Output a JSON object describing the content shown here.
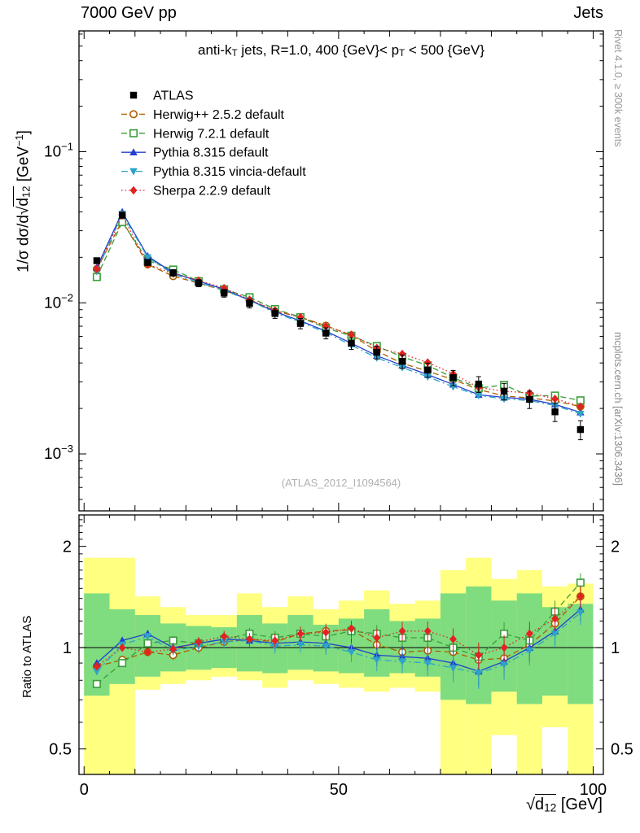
{
  "header": {
    "left": "7000 GeV pp",
    "right": "Jets"
  },
  "side_notes": {
    "right_top": "Rivet 4.1.0, ≥ 300k events",
    "right_bottom": "mcplots.cern.ch [arXiv:1306.3436]"
  },
  "watermark": "(ATLAS_2012_I1094564)",
  "titles": {
    "main": {
      "p1": "anti-k",
      "sub1": "T",
      "p2": " jets, R=1.0, 400 {GeV}< p",
      "sub2": "T",
      "p3": " < 500 {GeV}"
    },
    "ylabel": {
      "p1": "1/σ dσ/d",
      "rad": "√",
      "base": "d",
      "sub": "12",
      "p2": " [GeV",
      "sup": "−1",
      "p3": "]"
    },
    "xlabel": {
      "rad": "√",
      "base": "d",
      "sub": "12",
      "p2": " [GeV]"
    },
    "ratio_ylabel": "Ratio to ATLAS"
  },
  "chart_data": {
    "type": "line",
    "title": "anti-kT jets, R=1.0, 400 GeV < pT < 500 GeV",
    "xlabel": "sqrt(d12) [GeV]",
    "ylabel_main": "1/σ dσ/d sqrt(d12) [GeV^-1]",
    "ylabel_ratio": "Ratio to ATLAS",
    "x_range": [
      -1,
      102
    ],
    "x_ticks_major": [
      0,
      50,
      100
    ],
    "main_y_scale": "log",
    "main_y_range": [
      0.00042,
      0.63
    ],
    "main_y_ticks": [
      0.1,
      0.01,
      0.001
    ],
    "ratio_y_scale": "log",
    "ratio_y_range": [
      0.42,
      2.48
    ],
    "ratio_y_ticks": [
      2,
      1,
      0.5
    ],
    "bin_width": 5,
    "x": [
      2.5,
      7.5,
      12.5,
      17.5,
      22.5,
      27.5,
      32.5,
      37.5,
      42.5,
      47.5,
      52.5,
      57.5,
      62.5,
      67.5,
      72.5,
      77.5,
      82.5,
      87.5,
      92.5,
      97.5
    ],
    "reference": {
      "name": "ATLAS",
      "color": "#000000",
      "marker": "square-filled",
      "values": [
        0.019,
        0.038,
        0.0185,
        0.0158,
        0.0135,
        0.0116,
        0.0099,
        0.0085,
        0.0073,
        0.0063,
        0.0054,
        0.0047,
        0.0041,
        0.0036,
        0.0032,
        0.0029,
        0.0026,
        0.0023,
        0.0019,
        0.00145
      ]
    },
    "series": [
      {
        "name": "Herwig++ 2.5.2 default",
        "color": "#aa5f00",
        "marker": "circle-open",
        "line": "dashed",
        "ratio": [
          0.88,
          0.92,
          0.97,
          0.95,
          1.0,
          1.04,
          1.06,
          1.04,
          1.1,
          1.12,
          1.13,
          1.02,
          0.97,
          0.98,
          0.97,
          0.92,
          0.93,
          1.02,
          1.18,
          1.42
        ]
      },
      {
        "name": "Herwig 7.2.1 default",
        "color": "#3a9e3a",
        "marker": "square-open",
        "line": "dashed",
        "ratio": [
          0.78,
          0.9,
          1.03,
          1.05,
          1.03,
          1.06,
          1.1,
          1.07,
          1.1,
          1.08,
          1.12,
          1.1,
          1.07,
          1.07,
          1.0,
          0.94,
          1.1,
          1.05,
          1.28,
          1.56
        ]
      },
      {
        "name": "Pythia 8.315 default",
        "color": "#2040cc",
        "marker": "triangle-up",
        "line": "solid",
        "ratio": [
          0.9,
          1.05,
          1.1,
          1.0,
          1.03,
          1.06,
          1.05,
          1.03,
          1.04,
          1.03,
          1.0,
          0.95,
          0.94,
          0.93,
          0.9,
          0.85,
          0.91,
          1.0,
          1.12,
          1.3
        ]
      },
      {
        "name": "Pythia 8.315 vincia-default",
        "color": "#2fa3c7",
        "marker": "triangle-down",
        "line": "dashdot",
        "ratio": [
          0.85,
          1.02,
          1.08,
          0.98,
          1.01,
          1.04,
          1.05,
          1.01,
          1.02,
          1.01,
          0.97,
          0.92,
          0.91,
          0.9,
          0.87,
          0.84,
          0.89,
          0.98,
          1.1,
          1.27
        ]
      },
      {
        "name": "Sherpa 2.2.9 default",
        "color": "#e32222",
        "marker": "diamond",
        "line": "dotted",
        "ratio": [
          0.88,
          1.0,
          0.97,
          0.99,
          1.04,
          1.08,
          1.06,
          1.05,
          1.1,
          1.11,
          1.14,
          1.07,
          1.12,
          1.12,
          1.06,
          0.95,
          1.0,
          1.1,
          1.22,
          1.42
        ]
      }
    ],
    "bands": {
      "yellow": {
        "color": "#ffff80",
        "lo": [
          0.4,
          0.4,
          0.75,
          0.78,
          0.8,
          0.82,
          0.8,
          0.76,
          0.8,
          0.78,
          0.76,
          0.74,
          0.76,
          0.74,
          0.4,
          0.4,
          0.55,
          0.4,
          0.58,
          0.4
        ],
        "hi": [
          1.85,
          1.85,
          1.42,
          1.32,
          1.25,
          1.25,
          1.45,
          1.32,
          1.42,
          1.3,
          1.38,
          1.48,
          1.35,
          1.38,
          1.7,
          1.85,
          1.6,
          1.7,
          1.52,
          1.55
        ]
      },
      "green": {
        "color": "#7fdc7f",
        "lo": [
          0.72,
          0.78,
          0.82,
          0.85,
          0.86,
          0.87,
          0.85,
          0.84,
          0.86,
          0.85,
          0.84,
          0.82,
          0.84,
          0.82,
          0.7,
          0.68,
          0.74,
          0.68,
          0.72,
          0.68
        ],
        "hi": [
          1.45,
          1.3,
          1.25,
          1.18,
          1.16,
          1.15,
          1.25,
          1.18,
          1.25,
          1.17,
          1.22,
          1.3,
          1.2,
          1.22,
          1.45,
          1.52,
          1.38,
          1.45,
          1.32,
          1.35
        ]
      }
    },
    "legend_position": "top-left-inside"
  }
}
